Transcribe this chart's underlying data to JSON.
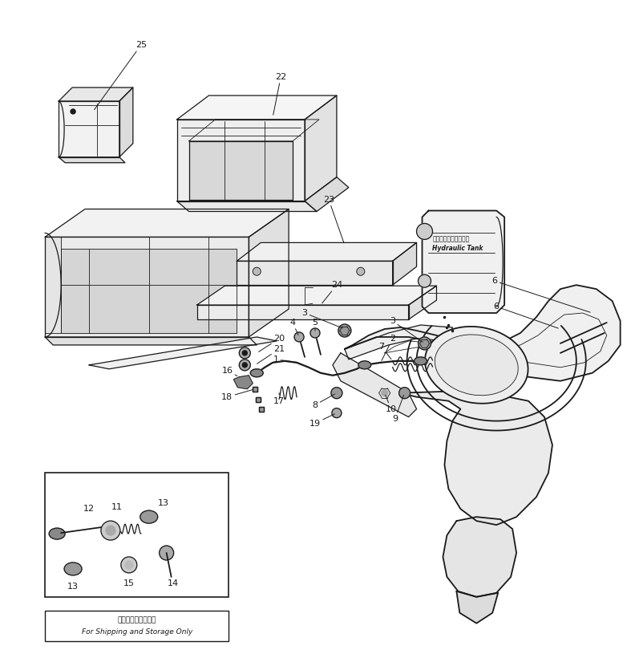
{
  "bg_color": "#ffffff",
  "line_color": "#1a1a1a",
  "fig_width": 7.82,
  "fig_height": 8.1,
  "dpi": 100,
  "bottom_text_ja": "輸送及び調整用のみ",
  "bottom_text_en": "For Shipping and Storage Only",
  "hydraulic_tank_ja": "ハイドロリックタンク",
  "hydraulic_tank_en": "Hydraulic Tank"
}
